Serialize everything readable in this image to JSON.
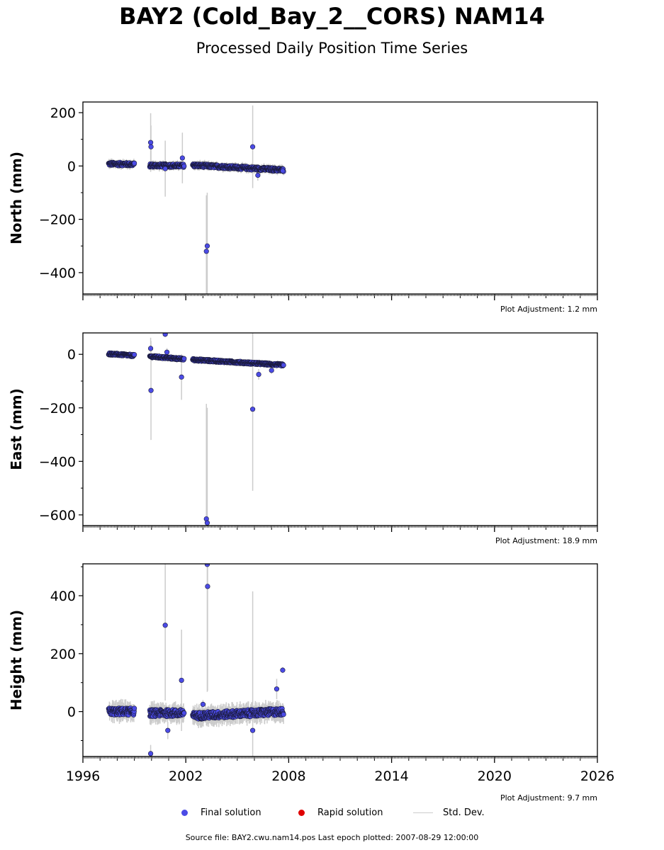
{
  "header": {
    "title": "BAY2 (Cold_Bay_2__CORS) NAM14",
    "subtitle": "Processed Daily Position Time Series"
  },
  "legend": {
    "final": "Final solution",
    "rapid": "Rapid solution",
    "std": "Std. Dev.",
    "final_color": "#4b4be6",
    "rapid_color": "#e00000",
    "std_color": "#cccccc"
  },
  "footer": {
    "source": "Source file: BAY2.cwu.nam14.pos  Last epoch plotted: 2007-08-29 12:00:00"
  },
  "chart_data": [
    {
      "type": "scatter",
      "ylabel": "North (mm)",
      "adjustment": "Plot Adjustment: 1.2 mm",
      "xlim": [
        1996,
        2026
      ],
      "ylim": [
        -480,
        240
      ],
      "yticks": [
        200,
        0,
        -200,
        -400
      ],
      "ytick_labels": [
        "200",
        "0",
        "−200",
        "−400"
      ],
      "segments": [
        [
          1997.5,
          1999.0
        ],
        [
          1999.9,
          2001.9
        ],
        [
          2002.4,
          2007.7
        ]
      ],
      "trend": [
        [
          1997.5,
          8
        ],
        [
          1999.0,
          6
        ],
        [
          1999.9,
          2
        ],
        [
          2001.9,
          1
        ],
        [
          2002.4,
          3
        ],
        [
          2007.7,
          -15
        ]
      ],
      "noise": 6,
      "outliers": [
        {
          "x": 1999.95,
          "y": 88,
          "sd": 110
        },
        {
          "x": 1999.97,
          "y": 72,
          "sd": 80
        },
        {
          "x": 2000.8,
          "y": -10,
          "sd": 105
        },
        {
          "x": 2001.8,
          "y": 30,
          "sd": 95
        },
        {
          "x": 2003.25,
          "y": -300,
          "sd": 200
        },
        {
          "x": 2003.2,
          "y": -320,
          "sd": 210
        },
        {
          "x": 2005.9,
          "y": 72,
          "sd": 155
        },
        {
          "x": 2006.2,
          "y": -35,
          "sd": 20
        },
        {
          "x": 2007.65,
          "y": -18,
          "sd": 12
        }
      ]
    },
    {
      "type": "scatter",
      "ylabel": "East (mm)",
      "adjustment": "Plot Adjustment: 18.9 mm",
      "xlim": [
        1996,
        2026
      ],
      "ylim": [
        -640,
        80
      ],
      "yticks": [
        0,
        -200,
        -400,
        -600
      ],
      "ytick_labels": [
        "0",
        "−200",
        "−400",
        "−600"
      ],
      "segments": [
        [
          1997.5,
          1999.0
        ],
        [
          1999.9,
          2001.9
        ],
        [
          2002.4,
          2007.7
        ]
      ],
      "trend": [
        [
          1997.5,
          2
        ],
        [
          1999.0,
          -5
        ],
        [
          1999.9,
          -8
        ],
        [
          2001.9,
          -18
        ],
        [
          2002.4,
          -20
        ],
        [
          2007.7,
          -40
        ]
      ],
      "noise": 4,
      "outliers": [
        {
          "x": 1999.95,
          "y": 22,
          "sd": 40
        },
        {
          "x": 1999.97,
          "y": -135,
          "sd": 185
        },
        {
          "x": 2000.8,
          "y": 75,
          "sd": 10
        },
        {
          "x": 2000.9,
          "y": 8,
          "sd": 15
        },
        {
          "x": 2001.75,
          "y": -85,
          "sd": 85
        },
        {
          "x": 2003.2,
          "y": -615,
          "sd": 430
        },
        {
          "x": 2003.25,
          "y": -630,
          "sd": 430
        },
        {
          "x": 2005.9,
          "y": -205,
          "sd": 305
        },
        {
          "x": 2006.25,
          "y": -75,
          "sd": 20
        },
        {
          "x": 2007.0,
          "y": -60,
          "sd": 12
        }
      ]
    },
    {
      "type": "scatter",
      "ylabel": "Height (mm)",
      "adjustment": "Plot Adjustment: 9.7 mm",
      "xlim": [
        1996,
        2026
      ],
      "ylim": [
        -155,
        510
      ],
      "yticks": [
        400,
        200,
        0
      ],
      "ytick_labels": [
        "400",
        "200",
        "0"
      ],
      "xticks": [
        1996,
        2002,
        2008,
        2014,
        2020,
        2026
      ],
      "segments": [
        [
          1997.5,
          1999.0
        ],
        [
          1999.9,
          2001.9
        ],
        [
          2002.4,
          2007.7
        ]
      ],
      "trend": [
        [
          1997.5,
          0
        ],
        [
          1999.0,
          0
        ],
        [
          1999.9,
          -5
        ],
        [
          2001.9,
          -5
        ],
        [
          2002.4,
          -15
        ],
        [
          2007.7,
          0
        ]
      ],
      "noise": 12,
      "outliers": [
        {
          "x": 1999.95,
          "y": -145,
          "sd": 30
        },
        {
          "x": 2000.8,
          "y": 298,
          "sd": 260
        },
        {
          "x": 2000.95,
          "y": -65,
          "sd": 30
        },
        {
          "x": 2001.75,
          "y": 108,
          "sd": 175
        },
        {
          "x": 2003.25,
          "y": 508,
          "sd": 440
        },
        {
          "x": 2003.27,
          "y": 432,
          "sd": 360
        },
        {
          "x": 2005.9,
          "y": -65,
          "sd": 480
        },
        {
          "x": 2007.3,
          "y": 78,
          "sd": 35
        },
        {
          "x": 2007.65,
          "y": 143,
          "sd": 10
        },
        {
          "x": 2003.0,
          "y": 25,
          "sd": 15
        }
      ]
    }
  ]
}
